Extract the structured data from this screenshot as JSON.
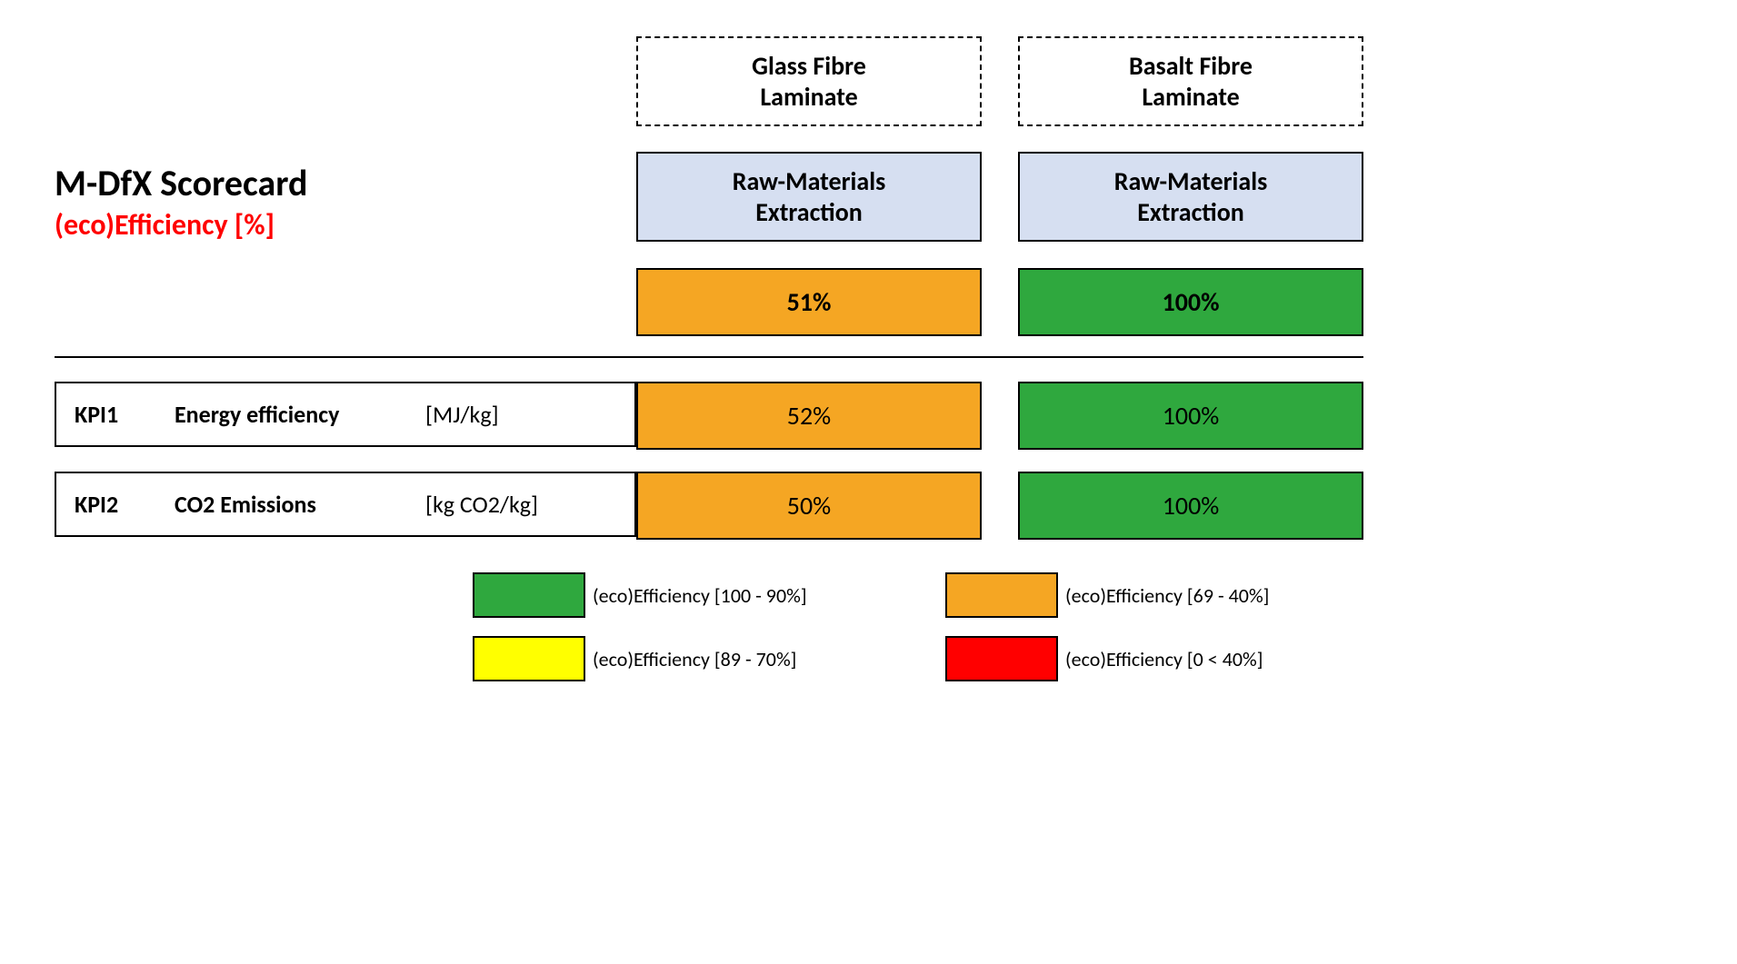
{
  "title": {
    "main": "M-DfX Scorecard",
    "sub": "(eco)Efficiency [%]"
  },
  "columns": [
    {
      "header": "Glass Fibre Laminate",
      "phase": "Raw-Materials Extraction",
      "topScore": "51%",
      "topColor": "#f5a623"
    },
    {
      "header": "Basalt Fibre Laminate",
      "phase": "Raw-Materials Extraction",
      "topScore": "100%",
      "topColor": "#2fa83e"
    }
  ],
  "kpis": [
    {
      "code": "KPI1",
      "name": "Energy efficiency",
      "unit": "[MJ/kg]",
      "cells": [
        {
          "value": "52%",
          "color": "#f5a623"
        },
        {
          "value": "100%",
          "color": "#2fa83e"
        }
      ]
    },
    {
      "code": "KPI2",
      "name": "CO2 Emissions",
      "unit": "[kg CO2/kg]",
      "cells": [
        {
          "value": "50%",
          "color": "#f5a623"
        },
        {
          "value": "100%",
          "color": "#2fa83e"
        }
      ]
    }
  ],
  "legend": [
    {
      "color": "#2fa83e",
      "label": "(eco)Efficiency [100 - 90%]"
    },
    {
      "color": "#f5a623",
      "label": "(eco)Efficiency [69 - 40%]"
    },
    {
      "color": "#ffff00",
      "label": "(eco)Efficiency [89 - 70%]"
    },
    {
      "color": "#ff0000",
      "label": "(eco)Efficiency  [0 < 40%]"
    }
  ],
  "style": {
    "background": "#ffffff",
    "text": "#000000",
    "accentRed": "#ff0000",
    "phaseFill": "#d6dff1",
    "border": "#000000",
    "dashedBorder": "#000000",
    "titleFontSize": 40,
    "subtitleFontSize": 32,
    "headerFontSize": 28,
    "kpiFontSize": 26,
    "legendFontSize": 22
  }
}
